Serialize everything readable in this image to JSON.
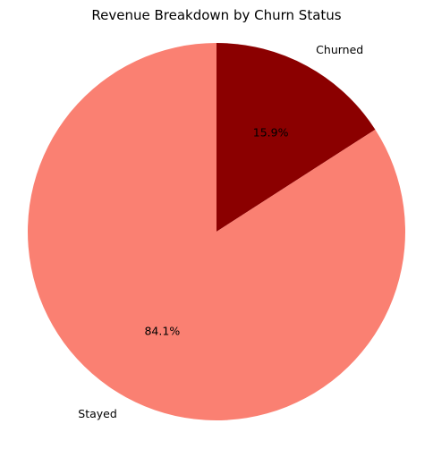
{
  "chart_data": {
    "type": "pie",
    "title": "Revenue Breakdown by Churn Status",
    "categories": [
      "Churned",
      "Stayed"
    ],
    "values": [
      15.9,
      84.1
    ],
    "value_labels": [
      "15.9%",
      "84.1%"
    ],
    "colors": [
      "#8b0000",
      "#fa8072"
    ],
    "start_angle_deg": 90,
    "direction": "clockwise",
    "legend": "none"
  }
}
